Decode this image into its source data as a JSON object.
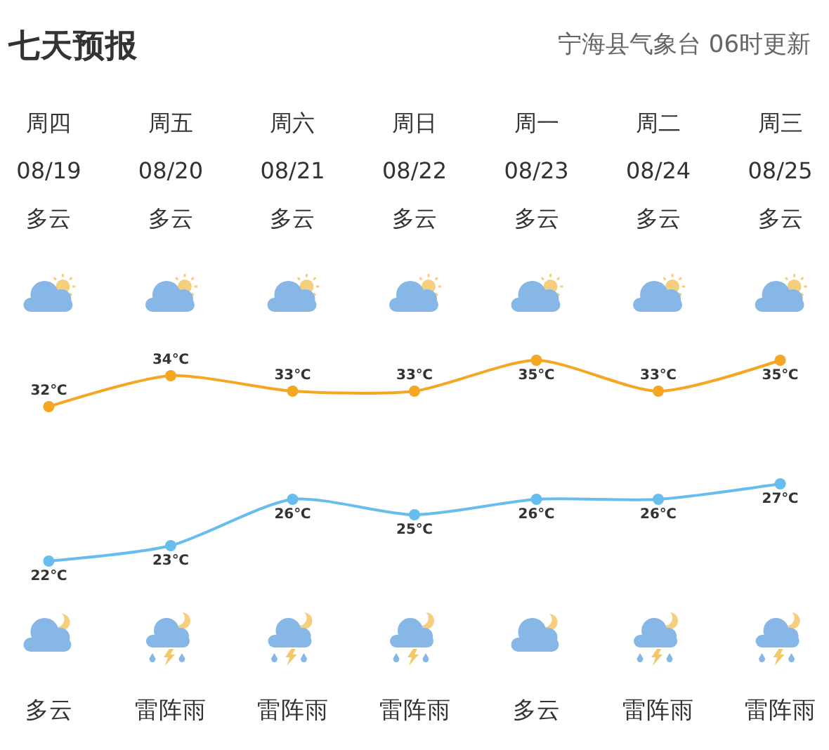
{
  "chart_data": {
    "type": "line",
    "title": "七天预报",
    "subtitle": "宁海县气象台 06时更新",
    "categories": [
      "周四\n08/19\n多云",
      "周五\n08/20\n多云",
      "周六\n08/21\n多云",
      "周日\n08/22\n多云",
      "周一\n08/23\n多云",
      "周二\n08/24\n多云",
      "周三\n08/25\n多云"
    ],
    "series": [
      {
        "color": "#f5a623",
        "values": [
          32,
          34,
          33,
          33,
          35,
          33,
          35
        ],
        "value_labels": [
          "32℃",
          "34℃",
          "33℃",
          "33℃",
          "35℃",
          "33℃",
          "35℃"
        ]
      },
      {
        "color": "#66bdee",
        "values": [
          22,
          23,
          26,
          25,
          26,
          26,
          27
        ],
        "value_labels": [
          "22℃",
          "23℃",
          "26℃",
          "25℃",
          "26℃",
          "26℃",
          "27℃"
        ]
      }
    ],
    "annotations": [
      "多云",
      "雷阵雨",
      "雷阵雨",
      "雷阵雨",
      "多云",
      "雷阵雨",
      "雷阵雨"
    ],
    "tick_labels": "x",
    "marker": "circle",
    "line_style": "solid"
  }
}
